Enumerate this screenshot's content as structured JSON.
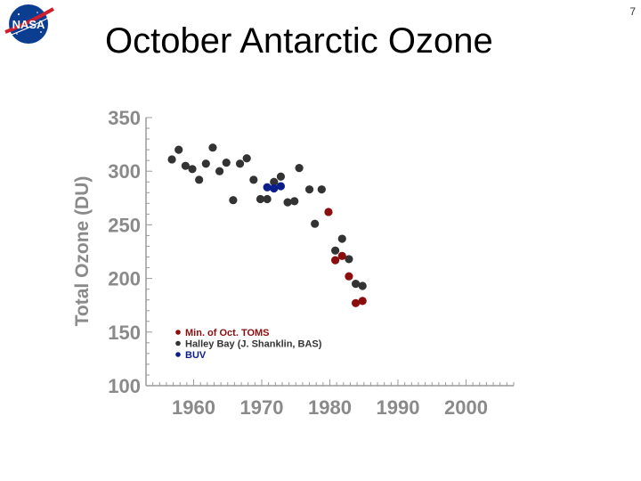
{
  "slide": {
    "title": "October Antarctic Ozone",
    "page_number": "7",
    "logo_text": "NASA"
  },
  "colors": {
    "halley": "#333333",
    "toms": "#8b0d0d",
    "buv": "#0a1f8a",
    "axis": "#9a9a9a",
    "tick_text": "#8a8a8a"
  },
  "chart_data": {
    "type": "scatter",
    "title": "",
    "xlabel": "",
    "ylabel": "Total Ozone (DU)",
    "xlim": [
      1953,
      2007
    ],
    "ylim": [
      100,
      350
    ],
    "x_ticks": [
      "1960",
      "1970",
      "1980",
      "1990",
      "2000"
    ],
    "y_ticks": [
      "100",
      "150",
      "200",
      "250",
      "300",
      "350"
    ],
    "grid": false,
    "legend_position": "bottom-left",
    "series": [
      {
        "name": "Halley Bay (J. Shanklin, BAS)",
        "color": "#333333",
        "points": [
          [
            1956.8,
            311
          ],
          [
            1957.8,
            320
          ],
          [
            1958.8,
            305
          ],
          [
            1959.8,
            302
          ],
          [
            1960.8,
            292
          ],
          [
            1961.8,
            307
          ],
          [
            1962.8,
            322
          ],
          [
            1963.8,
            300
          ],
          [
            1964.8,
            308
          ],
          [
            1965.8,
            273
          ],
          [
            1966.8,
            307
          ],
          [
            1967.8,
            312
          ],
          [
            1968.8,
            292
          ],
          [
            1969.8,
            274
          ],
          [
            1970.8,
            274
          ],
          [
            1971.8,
            290
          ],
          [
            1972.8,
            295
          ],
          [
            1973.8,
            271
          ],
          [
            1974.8,
            272
          ],
          [
            1975.5,
            303
          ],
          [
            1977.0,
            283
          ],
          [
            1977.8,
            251
          ],
          [
            1978.8,
            283
          ],
          [
            1980.8,
            226
          ],
          [
            1981.8,
            237
          ],
          [
            1982.8,
            218
          ],
          [
            1983.8,
            195
          ],
          [
            1984.8,
            193
          ]
        ]
      },
      {
        "name": "Min. of Oct. TOMS",
        "color": "#8b0d0d",
        "points": [
          [
            1979.8,
            262
          ],
          [
            1980.8,
            217
          ],
          [
            1981.8,
            221
          ],
          [
            1982.8,
            202
          ],
          [
            1983.8,
            177
          ],
          [
            1984.8,
            179
          ]
        ]
      },
      {
        "name": "BUV",
        "color": "#0a1f8a",
        "points": [
          [
            1970.8,
            285
          ],
          [
            1971.8,
            284
          ],
          [
            1972.8,
            286
          ]
        ]
      }
    ],
    "legend": [
      {
        "label": "Min. of Oct. TOMS",
        "color": "#8b0d0d"
      },
      {
        "label": "Halley Bay (J. Shanklin, BAS)",
        "color": "#333333"
      },
      {
        "label": "BUV",
        "color": "#0a1f8a"
      }
    ]
  }
}
